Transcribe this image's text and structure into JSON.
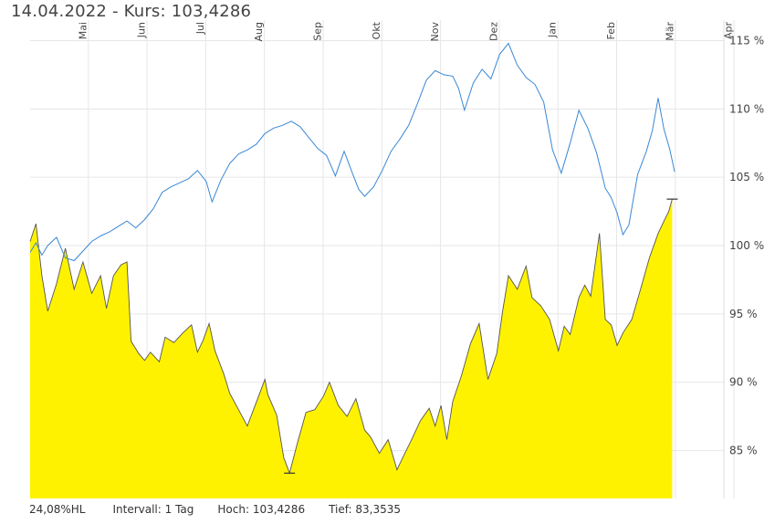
{
  "header": {
    "date": "14.04.2022",
    "separator": " - ",
    "price_label": "Kurs:",
    "price_value": "103,4286"
  },
  "footer": {
    "range": "24,08%HL",
    "interval": "Intervall: 1 Tag",
    "high": "Hoch: 103,4286",
    "low": "Tief: 83,3535"
  },
  "colors": {
    "area_fill": "#fff200",
    "area_line": "#555555",
    "compare_line": "#3a87d6",
    "grid": "#e6e6e6",
    "marker": "#333333"
  },
  "chart_data": {
    "type": "area",
    "x_labels": [
      "Mai",
      "Jun",
      "Jul",
      "Aug",
      "Sep",
      "Okt",
      "Nov",
      "Dez",
      "Jan",
      "Feb",
      "Mär",
      "Apr"
    ],
    "x_range": [
      0,
      12.3
    ],
    "ylim": [
      81.5,
      116.5
    ],
    "y_ticks": [
      85,
      90,
      95,
      100,
      105,
      110,
      115
    ],
    "y_tick_labels": [
      "85 %",
      "90 %",
      "95 %",
      "100 %",
      "105 %",
      "110 %",
      "115 %"
    ],
    "grid": true,
    "series": [
      {
        "kind": "area",
        "points": [
          [
            0.0,
            100.3
          ],
          [
            0.1,
            101.6
          ],
          [
            0.2,
            97.8
          ],
          [
            0.3,
            95.2
          ],
          [
            0.45,
            97.2
          ],
          [
            0.6,
            99.8
          ],
          [
            0.75,
            96.8
          ],
          [
            0.9,
            98.8
          ],
          [
            1.05,
            96.5
          ],
          [
            1.2,
            97.8
          ],
          [
            1.3,
            95.4
          ],
          [
            1.42,
            97.8
          ],
          [
            1.55,
            98.6
          ],
          [
            1.65,
            98.8
          ],
          [
            1.72,
            93.0
          ],
          [
            1.85,
            92.1
          ],
          [
            1.95,
            91.6
          ],
          [
            2.05,
            92.2
          ],
          [
            2.2,
            91.5
          ],
          [
            2.3,
            93.3
          ],
          [
            2.45,
            92.9
          ],
          [
            2.6,
            93.6
          ],
          [
            2.75,
            94.2
          ],
          [
            2.85,
            92.2
          ],
          [
            2.95,
            93.1
          ],
          [
            3.05,
            94.3
          ],
          [
            3.15,
            92.3
          ],
          [
            3.3,
            90.6
          ],
          [
            3.4,
            89.2
          ],
          [
            3.55,
            88.0
          ],
          [
            3.7,
            86.8
          ],
          [
            3.85,
            88.5
          ],
          [
            4.0,
            90.2
          ],
          [
            4.05,
            89.1
          ],
          [
            4.2,
            87.6
          ],
          [
            4.32,
            84.5
          ],
          [
            4.42,
            83.35
          ],
          [
            4.55,
            85.5
          ],
          [
            4.7,
            87.8
          ],
          [
            4.85,
            88.0
          ],
          [
            5.0,
            89.0
          ],
          [
            5.1,
            90.0
          ],
          [
            5.25,
            88.3
          ],
          [
            5.4,
            87.5
          ],
          [
            5.55,
            88.8
          ],
          [
            5.7,
            86.5
          ],
          [
            5.8,
            86.0
          ],
          [
            5.95,
            84.8
          ],
          [
            6.1,
            85.8
          ],
          [
            6.25,
            83.6
          ],
          [
            6.35,
            84.5
          ],
          [
            6.5,
            85.8
          ],
          [
            6.65,
            87.2
          ],
          [
            6.8,
            88.1
          ],
          [
            6.9,
            86.8
          ],
          [
            7.0,
            88.3
          ],
          [
            7.1,
            85.8
          ],
          [
            7.2,
            88.6
          ],
          [
            7.35,
            90.5
          ],
          [
            7.5,
            92.8
          ],
          [
            7.65,
            94.3
          ],
          [
            7.8,
            90.2
          ],
          [
            7.95,
            92.1
          ],
          [
            8.05,
            95.2
          ],
          [
            8.15,
            97.8
          ],
          [
            8.3,
            96.8
          ],
          [
            8.45,
            98.5
          ],
          [
            8.55,
            96.2
          ],
          [
            8.7,
            95.6
          ],
          [
            8.85,
            94.6
          ],
          [
            9.0,
            92.3
          ],
          [
            9.1,
            94.1
          ],
          [
            9.2,
            93.5
          ],
          [
            9.35,
            96.2
          ],
          [
            9.45,
            97.1
          ],
          [
            9.55,
            96.3
          ],
          [
            9.7,
            100.9
          ],
          [
            9.8,
            94.6
          ],
          [
            9.9,
            94.2
          ],
          [
            10.0,
            92.7
          ],
          [
            10.1,
            93.6
          ],
          [
            10.25,
            94.6
          ],
          [
            10.4,
            96.8
          ],
          [
            10.55,
            99.1
          ],
          [
            10.7,
            100.9
          ],
          [
            10.8,
            101.8
          ],
          [
            10.88,
            102.5
          ],
          [
            10.94,
            103.4
          ]
        ]
      },
      {
        "kind": "line",
        "points": [
          [
            0.0,
            99.5
          ],
          [
            0.1,
            100.2
          ],
          [
            0.2,
            99.3
          ],
          [
            0.3,
            100.0
          ],
          [
            0.45,
            100.6
          ],
          [
            0.6,
            99.1
          ],
          [
            0.75,
            98.9
          ],
          [
            0.9,
            99.6
          ],
          [
            1.05,
            100.3
          ],
          [
            1.2,
            100.7
          ],
          [
            1.35,
            101.0
          ],
          [
            1.5,
            101.4
          ],
          [
            1.65,
            101.8
          ],
          [
            1.8,
            101.3
          ],
          [
            1.95,
            101.9
          ],
          [
            2.1,
            102.7
          ],
          [
            2.25,
            103.9
          ],
          [
            2.4,
            104.3
          ],
          [
            2.55,
            104.6
          ],
          [
            2.7,
            104.9
          ],
          [
            2.85,
            105.5
          ],
          [
            3.0,
            104.7
          ],
          [
            3.1,
            103.2
          ],
          [
            3.25,
            104.8
          ],
          [
            3.4,
            106.0
          ],
          [
            3.55,
            106.7
          ],
          [
            3.7,
            107.0
          ],
          [
            3.85,
            107.4
          ],
          [
            4.0,
            108.2
          ],
          [
            4.15,
            108.6
          ],
          [
            4.3,
            108.8
          ],
          [
            4.45,
            109.1
          ],
          [
            4.6,
            108.7
          ],
          [
            4.75,
            107.9
          ],
          [
            4.9,
            107.1
          ],
          [
            5.05,
            106.6
          ],
          [
            5.2,
            105.1
          ],
          [
            5.35,
            106.9
          ],
          [
            5.5,
            105.2
          ],
          [
            5.6,
            104.1
          ],
          [
            5.7,
            103.6
          ],
          [
            5.85,
            104.3
          ],
          [
            6.0,
            105.5
          ],
          [
            6.15,
            106.9
          ],
          [
            6.3,
            107.8
          ],
          [
            6.45,
            108.8
          ],
          [
            6.6,
            110.4
          ],
          [
            6.75,
            112.1
          ],
          [
            6.9,
            112.8
          ],
          [
            7.05,
            112.5
          ],
          [
            7.2,
            112.4
          ],
          [
            7.3,
            111.5
          ],
          [
            7.4,
            109.9
          ],
          [
            7.55,
            111.9
          ],
          [
            7.7,
            112.9
          ],
          [
            7.85,
            112.2
          ],
          [
            8.0,
            114.0
          ],
          [
            8.15,
            114.8
          ],
          [
            8.3,
            113.2
          ],
          [
            8.45,
            112.3
          ],
          [
            8.6,
            111.8
          ],
          [
            8.75,
            110.5
          ],
          [
            8.9,
            107.0
          ],
          [
            9.05,
            105.3
          ],
          [
            9.2,
            107.5
          ],
          [
            9.35,
            109.9
          ],
          [
            9.5,
            108.6
          ],
          [
            9.65,
            106.8
          ],
          [
            9.8,
            104.2
          ],
          [
            9.9,
            103.5
          ],
          [
            10.0,
            102.4
          ],
          [
            10.1,
            100.8
          ],
          [
            10.2,
            101.5
          ],
          [
            10.35,
            105.2
          ],
          [
            10.5,
            106.9
          ],
          [
            10.6,
            108.4
          ],
          [
            10.7,
            110.8
          ],
          [
            10.8,
            108.5
          ],
          [
            10.9,
            107.0
          ],
          [
            10.98,
            105.4
          ]
        ]
      }
    ]
  }
}
